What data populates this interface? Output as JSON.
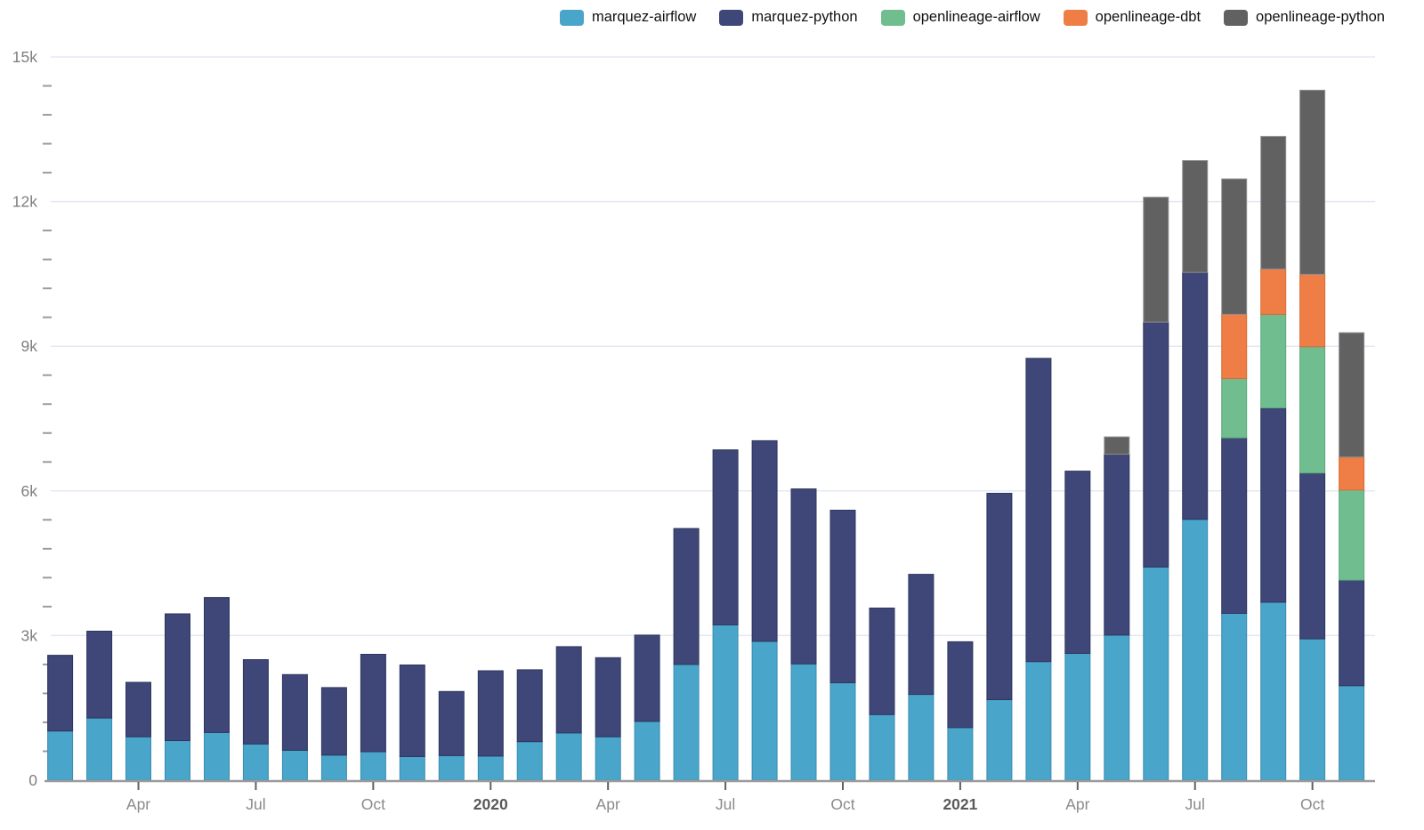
{
  "chart_data": {
    "type": "bar",
    "stacked": true,
    "title": "",
    "xlabel": "",
    "ylabel": "",
    "ylim": [
      0,
      15000
    ],
    "grid": true,
    "legend_position": "top-right",
    "y_tick_labels": [
      {
        "value": 0,
        "label": "0"
      },
      {
        "value": 3000,
        "label": "3k"
      },
      {
        "value": 6000,
        "label": "6k"
      },
      {
        "value": 9000,
        "label": "9k"
      },
      {
        "value": 12000,
        "label": "12k"
      },
      {
        "value": 15000,
        "label": "15k"
      }
    ],
    "y_minor_interval": 600,
    "categories": [
      "2019-02",
      "2019-03",
      "2019-04",
      "2019-05",
      "2019-06",
      "2019-07",
      "2019-08",
      "2019-09",
      "2019-10",
      "2019-11",
      "2019-12",
      "2020-01",
      "2020-02",
      "2020-03",
      "2020-04",
      "2020-05",
      "2020-06",
      "2020-07",
      "2020-08",
      "2020-09",
      "2020-10",
      "2020-11",
      "2020-12",
      "2021-01",
      "2021-02",
      "2021-03",
      "2021-04",
      "2021-05",
      "2021-06",
      "2021-07",
      "2021-08",
      "2021-09",
      "2021-10",
      "2021-11"
    ],
    "x_ticks": [
      {
        "index": 2,
        "label": "Apr",
        "bold": false
      },
      {
        "index": 5,
        "label": "Jul",
        "bold": false
      },
      {
        "index": 8,
        "label": "Oct",
        "bold": false
      },
      {
        "index": 11,
        "label": "2020",
        "bold": true
      },
      {
        "index": 14,
        "label": "Apr",
        "bold": false
      },
      {
        "index": 17,
        "label": "Jul",
        "bold": false
      },
      {
        "index": 20,
        "label": "Oct",
        "bold": false
      },
      {
        "index": 23,
        "label": "2021",
        "bold": true
      },
      {
        "index": 26,
        "label": "Apr",
        "bold": false
      },
      {
        "index": 29,
        "label": "Jul",
        "bold": false
      },
      {
        "index": 32,
        "label": "Oct",
        "bold": false
      }
    ],
    "series": [
      {
        "name": "marquez-airflow",
        "color": "#49a5c9",
        "border": "#3a8cb0",
        "values": [
          1020,
          1290,
          900,
          820,
          990,
          750,
          620,
          520,
          590,
          490,
          510,
          500,
          800,
          980,
          900,
          1220,
          2400,
          3220,
          2880,
          2410,
          2020,
          1360,
          1780,
          1090,
          1670,
          2460,
          2630,
          3010,
          4420,
          5410,
          3460,
          3690,
          2930,
          1960
        ]
      },
      {
        "name": "marquez-python",
        "color": "#3e4777",
        "border": "#2e3660",
        "values": [
          1570,
          1800,
          1130,
          2630,
          2800,
          1750,
          1570,
          1400,
          2020,
          1900,
          1330,
          1770,
          1490,
          1790,
          1640,
          1790,
          2820,
          3630,
          4160,
          3630,
          3580,
          2210,
          2490,
          1780,
          4280,
          6290,
          3780,
          3750,
          5080,
          5120,
          3640,
          4030,
          3440,
          2190
        ]
      },
      {
        "name": "openlineage-airflow",
        "color": "#70bd8f",
        "border": "#5aa97c",
        "values": [
          0,
          0,
          0,
          0,
          0,
          0,
          0,
          0,
          0,
          0,
          0,
          0,
          0,
          0,
          0,
          0,
          0,
          0,
          0,
          0,
          0,
          0,
          0,
          0,
          0,
          0,
          0,
          0,
          0,
          0,
          1230,
          1940,
          2620,
          1870
        ]
      },
      {
        "name": "openlineage-dbt",
        "color": "#ee7e45",
        "border": "#d96c35",
        "values": [
          0,
          0,
          0,
          0,
          0,
          0,
          0,
          0,
          0,
          0,
          0,
          0,
          0,
          0,
          0,
          0,
          0,
          0,
          0,
          0,
          0,
          0,
          0,
          0,
          0,
          0,
          0,
          0,
          0,
          0,
          1330,
          940,
          1500,
          680
        ]
      },
      {
        "name": "openlineage-python",
        "color": "#616161",
        "border": "#8f8f8f",
        "values": [
          0,
          0,
          0,
          0,
          0,
          0,
          0,
          0,
          0,
          0,
          0,
          0,
          0,
          0,
          0,
          0,
          0,
          0,
          0,
          0,
          0,
          0,
          0,
          0,
          0,
          0,
          0,
          360,
          2590,
          2320,
          2810,
          2750,
          3820,
          2580
        ]
      }
    ]
  },
  "axis_style": {
    "grid_color": "#e3e9f4",
    "axis_line_color": "#9a9a9a",
    "minor_tick_color": "#9b9b9b",
    "x_tick_color": "#616161",
    "label_color": "#8a8a8a",
    "bold_label_color": "#5a5a5a",
    "y_label_color": "#7f7f7f"
  }
}
